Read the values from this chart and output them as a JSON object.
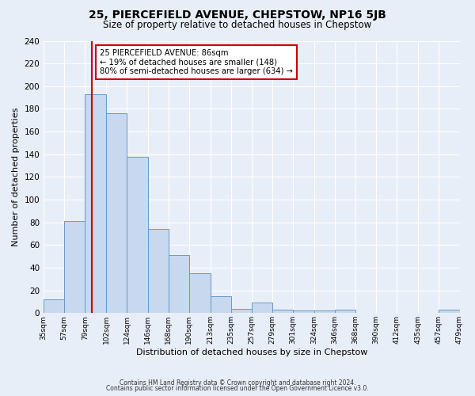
{
  "title": "25, PIERCEFIELD AVENUE, CHEPSTOW, NP16 5JB",
  "subtitle": "Size of property relative to detached houses in Chepstow",
  "xlabel": "Distribution of detached houses by size in Chepstow",
  "ylabel": "Number of detached properties",
  "bar_values": [
    12,
    81,
    193,
    176,
    138,
    74,
    51,
    35,
    15,
    4,
    9,
    3,
    2,
    2,
    3,
    0,
    0,
    0,
    0,
    3
  ],
  "bin_edges": [
    35,
    57,
    79,
    102,
    124,
    146,
    168,
    190,
    213,
    235,
    257,
    279,
    301,
    324,
    346,
    368,
    390,
    412,
    435,
    457,
    479
  ],
  "bin_labels": [
    "35sqm",
    "57sqm",
    "79sqm",
    "102sqm",
    "124sqm",
    "146sqm",
    "168sqm",
    "190sqm",
    "213sqm",
    "235sqm",
    "257sqm",
    "279sqm",
    "301sqm",
    "324sqm",
    "346sqm",
    "368sqm",
    "390sqm",
    "412sqm",
    "435sqm",
    "457sqm",
    "479sqm"
  ],
  "bar_color": "#c8d8ee",
  "bar_edge_color": "#6699cc",
  "property_line_x": 86,
  "property_line_color": "#cc0000",
  "ylim": [
    0,
    240
  ],
  "yticks": [
    0,
    20,
    40,
    60,
    80,
    100,
    120,
    140,
    160,
    180,
    200,
    220,
    240
  ],
  "annotation_title": "25 PIERCEFIELD AVENUE: 86sqm",
  "annotation_line1": "← 19% of detached houses are smaller (148)",
  "annotation_line2": "80% of semi-detached houses are larger (634) →",
  "annotation_box_color": "#ffffff",
  "annotation_box_edge": "#cc0000",
  "bg_color": "#e8eef8",
  "footer_line1": "Contains HM Land Registry data © Crown copyright and database right 2024.",
  "footer_line2": "Contains public sector information licensed under the Open Government Licence v3.0.",
  "grid_color": "#ffffff"
}
